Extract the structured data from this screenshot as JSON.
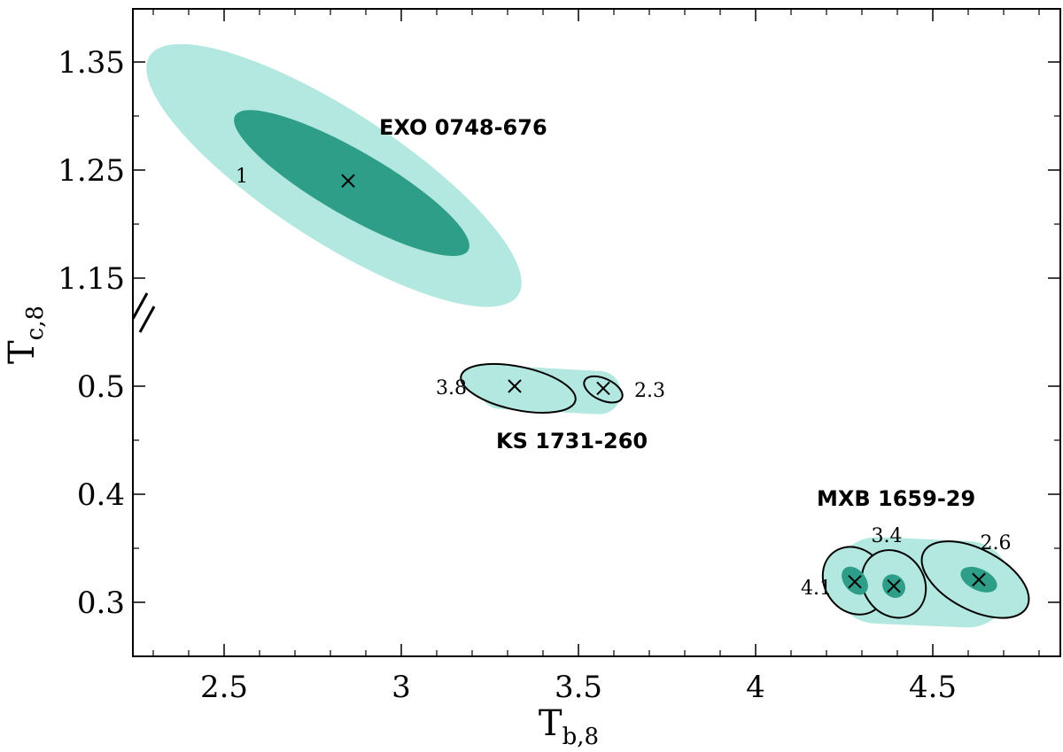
{
  "chart_data": {
    "type": "scatter",
    "xlabel": "T",
    "xlabel_sub": "b,8",
    "ylabel": "T",
    "ylabel_sub": "c,8",
    "xlim": [
      2.25,
      4.85
    ],
    "xticks": [
      2.5,
      3,
      3.5,
      4,
      4.5
    ],
    "xtick_labels": [
      "2.5",
      "3",
      "3.5",
      "4",
      "4.5"
    ],
    "ylim_display": [
      0.25,
      1.4
    ],
    "ytick_positions": [
      0.3,
      0.4,
      0.5,
      1.15,
      1.25,
      1.35
    ],
    "ytick_labels": [
      "0.3",
      "0.4",
      "0.5",
      "1.15",
      "1.25",
      "1.35"
    ],
    "axis_break": "broken y-axis between 0.5 and 1.15",
    "colors": {
      "outer": "#b2e8df",
      "inner": "#2f9e88",
      "line": "#000000"
    },
    "sources": [
      {
        "name": "EXO 0748-676",
        "points": [
          {
            "x": 2.85,
            "y": 1.24,
            "label": "1"
          }
        ],
        "regions": [
          {
            "level": "outer",
            "cx": 2.81,
            "cy": 1.245,
            "rx": 0.62,
            "ry": 0.06,
            "angle_deg": 33
          },
          {
            "level": "inner",
            "cx": 2.86,
            "cy": 1.238,
            "rx": 0.38,
            "ry": 0.03,
            "angle_deg": 30
          }
        ]
      },
      {
        "name": "KS 1731-260",
        "points": [
          {
            "x": 3.32,
            "y": 0.5,
            "label": "3.8"
          },
          {
            "x": 3.57,
            "y": 0.498,
            "label": "2.3"
          }
        ],
        "regions": [
          {
            "level": "outer-band",
            "from": [
              3.22,
              0.5
            ],
            "to": [
              3.62,
              0.493
            ],
            "halfwidth": 0.02
          }
        ],
        "contours": [
          {
            "cx": 3.33,
            "cy": 0.498,
            "rx": 0.165,
            "ry": 0.02,
            "angle_deg": 12
          },
          {
            "cx": 3.57,
            "cy": 0.497,
            "rx": 0.058,
            "ry": 0.01,
            "angle_deg": 25
          }
        ]
      },
      {
        "name": "MXB 1659-29",
        "points": [
          {
            "x": 4.28,
            "y": 0.319,
            "label": "4.1"
          },
          {
            "x": 4.39,
            "y": 0.315,
            "label": "3.4"
          },
          {
            "x": 4.63,
            "y": 0.321,
            "label": "2.6"
          }
        ],
        "regions": [
          {
            "level": "outer-band",
            "from": [
              4.22,
              0.322
            ],
            "to": [
              4.72,
              0.315
            ],
            "halfwidth": 0.04
          }
        ],
        "contours": [
          {
            "cx": 4.28,
            "cy": 0.32,
            "rx": 0.1,
            "ry": 0.028,
            "angle_deg": 55
          },
          {
            "cx": 4.39,
            "cy": 0.317,
            "rx": 0.1,
            "ry": 0.028,
            "angle_deg": 55
          },
          {
            "cx": 4.62,
            "cy": 0.321,
            "rx": 0.165,
            "ry": 0.028,
            "angle_deg": 28
          }
        ],
        "inner_spots": [
          {
            "cx": 4.28,
            "cy": 0.32,
            "rx": 0.045,
            "ry": 0.01,
            "angle_deg": 50
          },
          {
            "cx": 4.39,
            "cy": 0.315,
            "rx": 0.035,
            "ry": 0.01,
            "angle_deg": 50
          },
          {
            "cx": 4.63,
            "cy": 0.321,
            "rx": 0.055,
            "ry": 0.01,
            "angle_deg": 25
          }
        ]
      }
    ]
  }
}
